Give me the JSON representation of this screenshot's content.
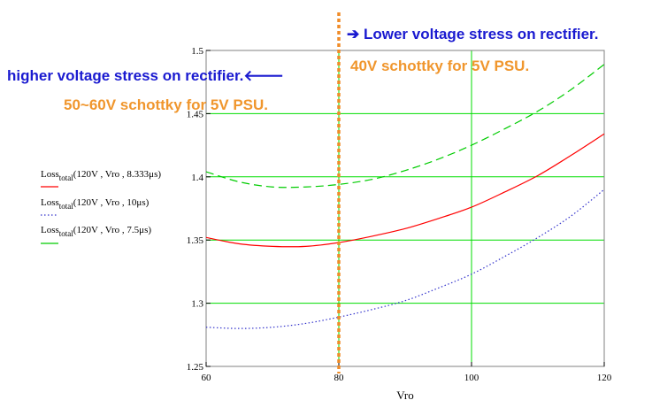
{
  "chart_data": {
    "type": "line",
    "xlabel": "Vro",
    "xlim": [
      60,
      120
    ],
    "ylim": [
      1.25,
      1.5
    ],
    "x_ticks": [
      "60",
      "80",
      "100",
      "120"
    ],
    "y_ticks": [
      "1.25",
      "1.3",
      "1.35",
      "1.4",
      "1.45",
      "1.5"
    ],
    "grid": true,
    "legend_position": "left",
    "series": [
      {
        "name_main": "Loss",
        "name_sub": "total",
        "name_args": "(120V , Vro , 8.333μs)",
        "color": "#ff0000",
        "style": "solid",
        "x": [
          60,
          65,
          70,
          75,
          80,
          85,
          90,
          95,
          100,
          105,
          110,
          115,
          120
        ],
        "y": [
          1.352,
          1.347,
          1.345,
          1.345,
          1.348,
          1.353,
          1.359,
          1.367,
          1.376,
          1.388,
          1.401,
          1.417,
          1.434
        ]
      },
      {
        "name_main": "Loss",
        "name_sub": "total",
        "name_args": "(120V , Vro , 10μs)",
        "color": "#3333cc",
        "style": "dotted",
        "x": [
          60,
          65,
          70,
          75,
          80,
          85,
          90,
          95,
          100,
          105,
          110,
          115,
          120
        ],
        "y": [
          1.281,
          1.28,
          1.281,
          1.284,
          1.289,
          1.295,
          1.302,
          1.312,
          1.323,
          1.337,
          1.352,
          1.369,
          1.39
        ]
      },
      {
        "name_main": "Loss",
        "name_sub": "total",
        "name_args": "(120V , Vro , 7.5μs)",
        "color": "#00cc00",
        "style": "dashed",
        "x": [
          60,
          65,
          70,
          75,
          80,
          85,
          90,
          95,
          100,
          105,
          110,
          115,
          120
        ],
        "y": [
          1.404,
          1.396,
          1.392,
          1.392,
          1.394,
          1.398,
          1.405,
          1.414,
          1.425,
          1.438,
          1.452,
          1.469,
          1.489
        ]
      }
    ],
    "marker_line": {
      "x": 80,
      "color": "#f08c28",
      "style": "dotted"
    }
  },
  "annotations": {
    "lower_stress": "➔ Lower voltage stress on rectifier.",
    "schottky_40v": "40V schottky for 5V PSU.",
    "higher_stress": "higher voltage stress on rectifier.🡐",
    "schottky_50_60v": "50~60V schottky for 5V PSU."
  },
  "colors": {
    "blue_text": "#1a1ad0",
    "orange_text": "#f0962d",
    "axis": "#808080",
    "grid": "#00dd00"
  }
}
